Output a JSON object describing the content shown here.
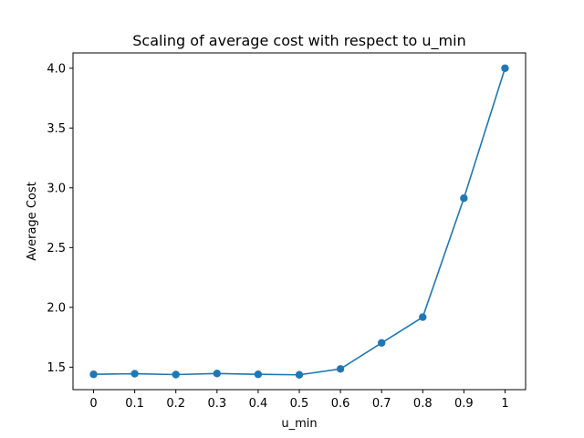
{
  "chart_data": {
    "type": "line",
    "title": "Scaling of average cost with respect to u_min",
    "xlabel": "u_min",
    "ylabel": "Average Cost",
    "x": [
      0,
      0.1,
      0.2,
      0.3,
      0.4,
      0.5,
      0.6,
      0.7,
      0.8,
      0.9,
      1
    ],
    "x_tick_labels": [
      "0",
      "0.1",
      "0.2",
      "0.3",
      "0.4",
      "0.5",
      "0.6",
      "0.7",
      "0.8",
      "0.9",
      "1"
    ],
    "series": [
      {
        "values": [
          1.44,
          1.445,
          1.438,
          1.447,
          1.44,
          1.436,
          1.485,
          1.703,
          1.918,
          2.913,
          4.0
        ],
        "color": "#1f77b4",
        "marker": "circle"
      }
    ],
    "y_ticks": [
      1.5,
      2.0,
      2.5,
      3.0,
      3.5,
      4.0
    ],
    "y_tick_labels": [
      "1.5",
      "2.0",
      "2.5",
      "3.0",
      "3.5",
      "4.0"
    ],
    "xlim": [
      -0.05,
      1.05
    ],
    "ylim": [
      1.312,
      4.128
    ],
    "grid": false,
    "legend": "none"
  }
}
